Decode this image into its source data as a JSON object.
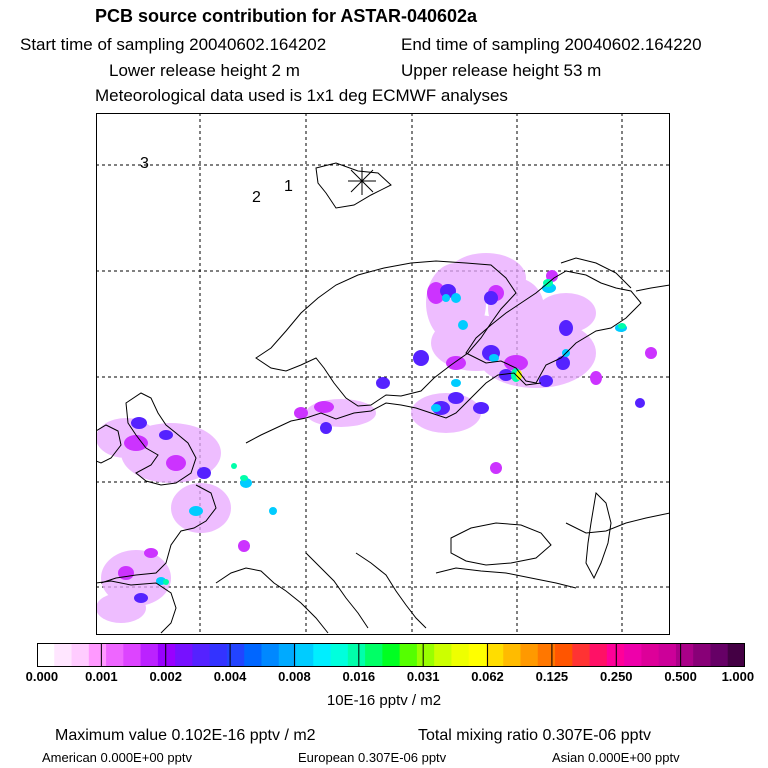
{
  "header": {
    "title": "PCB source contribution for ASTAR-040602a",
    "start_time": "Start time of sampling 20040602.164202",
    "end_time": "End time of sampling 20040602.164220",
    "lower_height": "Lower release height    2 m",
    "upper_height": "Upper release height   53 m",
    "met_data": "Meteorological data used is 1x1 deg ECMWF analyses"
  },
  "map": {
    "pole_labels": [
      "3",
      "2",
      "1"
    ],
    "coastline_color": "#000000",
    "grid_style": "dashed"
  },
  "legend": {
    "ticks": [
      "0.000",
      "0.001",
      "0.002",
      "0.004",
      "0.008",
      "0.016",
      "0.031",
      "0.062",
      "0.125",
      "0.250",
      "0.500",
      "1.000"
    ],
    "units": "10E-16 pptv / m2",
    "colors": [
      "#ffffff",
      "#ffe6ff",
      "#ffccff",
      "#ff99ff",
      "#ee66ff",
      "#dd44ff",
      "#bb22ff",
      "#9900ff",
      "#7711ff",
      "#5522ff",
      "#3333ff",
      "#2244ff",
      "#0066ff",
      "#0088ff",
      "#00aaff",
      "#00ccff",
      "#00eeff",
      "#00ffdd",
      "#00ffaa",
      "#00ff66",
      "#00ff22",
      "#55ff00",
      "#99ff00",
      "#ccff00",
      "#eeff00",
      "#ffff00",
      "#ffdd00",
      "#ffbb00",
      "#ff9900",
      "#ff7700",
      "#ff5500",
      "#ff3333",
      "#ff1166",
      "#ff0099",
      "#ee00aa",
      "#dd0099",
      "#cc0099",
      "#aa0088",
      "#880077",
      "#660066",
      "#440044"
    ]
  },
  "footer": {
    "maximum": "Maximum value  0.102E-16 pptv / m2",
    "total": "Total mixing ratio  0.307E-06 pptv",
    "american": "American  0.000E+00 pptv",
    "european": "European  0.307E-06 pptv",
    "asian": "Asian  0.000E+00 pptv"
  }
}
